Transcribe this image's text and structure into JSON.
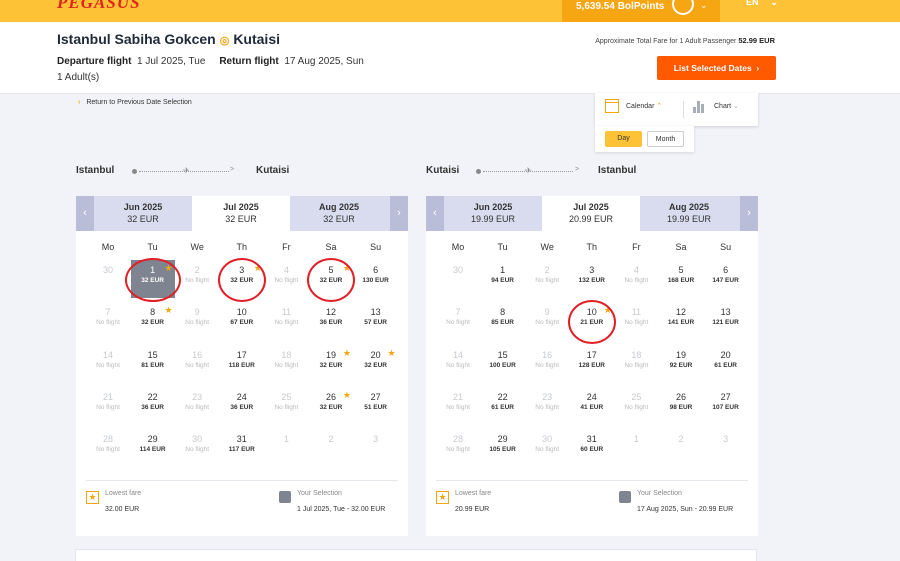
{
  "topbar": {
    "logo": "PEGASUS",
    "points": "5,639.54 BolPoints",
    "lang": "EN"
  },
  "header": {
    "origin": "Istanbul Sabiha Gokcen",
    "destination": "Kutaisi",
    "departure_label": "Departure flight",
    "departure_date": "1 Jul 2025, Tue",
    "return_label": "Return flight",
    "return_date": "17 Aug 2025, Sun",
    "passengers": "1 Adult(s)",
    "total_label": "Approximate Total Fare for 1 Adult Passenger",
    "total_value": "52.99 EUR",
    "list_button": "List Selected Dates"
  },
  "back_link": "Return to Previous Date Selection",
  "view": {
    "calendar": "Calendar",
    "chart": "Chart",
    "day": "Day",
    "month": "Month"
  },
  "weekdays": [
    "Mo",
    "Tu",
    "We",
    "Th",
    "Fr",
    "Sa",
    "Su"
  ],
  "outbound": {
    "from": "Istanbul",
    "to": "Kutaisi",
    "months": [
      {
        "name": "Jun 2025",
        "price": "32 EUR"
      },
      {
        "name": "Jul 2025",
        "price": "32 EUR",
        "active": true
      },
      {
        "name": "Aug 2025",
        "price": "32 EUR"
      }
    ],
    "days": [
      {
        "d": "30",
        "out": true
      },
      {
        "d": "1",
        "p": "32 EUR",
        "sel": true,
        "star": true,
        "circ": true
      },
      {
        "d": "2",
        "p": "No flight",
        "nf": true
      },
      {
        "d": "3",
        "p": "32 EUR",
        "star": true,
        "circ": true
      },
      {
        "d": "4",
        "p": "No flight",
        "nf": true
      },
      {
        "d": "5",
        "p": "32 EUR",
        "star": true,
        "circ": true
      },
      {
        "d": "6",
        "p": "130 EUR"
      },
      {
        "d": "7",
        "p": "No flight",
        "nf": true
      },
      {
        "d": "8",
        "p": "32 EUR",
        "star": true
      },
      {
        "d": "9",
        "p": "No flight",
        "nf": true
      },
      {
        "d": "10",
        "p": "67 EUR"
      },
      {
        "d": "11",
        "p": "No flight",
        "nf": true
      },
      {
        "d": "12",
        "p": "36 EUR"
      },
      {
        "d": "13",
        "p": "57 EUR"
      },
      {
        "d": "14",
        "p": "No flight",
        "nf": true
      },
      {
        "d": "15",
        "p": "81 EUR"
      },
      {
        "d": "16",
        "p": "No flight",
        "nf": true
      },
      {
        "d": "17",
        "p": "118 EUR"
      },
      {
        "d": "18",
        "p": "No flight",
        "nf": true
      },
      {
        "d": "19",
        "p": "32 EUR",
        "star": true
      },
      {
        "d": "20",
        "p": "32 EUR",
        "star": true
      },
      {
        "d": "21",
        "p": "No flight",
        "nf": true
      },
      {
        "d": "22",
        "p": "36 EUR"
      },
      {
        "d": "23",
        "p": "No flight",
        "nf": true
      },
      {
        "d": "24",
        "p": "36 EUR"
      },
      {
        "d": "25",
        "p": "No flight",
        "nf": true
      },
      {
        "d": "26",
        "p": "32 EUR",
        "star": true
      },
      {
        "d": "27",
        "p": "51 EUR"
      },
      {
        "d": "28",
        "p": "No flight",
        "nf": true
      },
      {
        "d": "29",
        "p": "114 EUR"
      },
      {
        "d": "30",
        "p": "No flight",
        "nf": true
      },
      {
        "d": "31",
        "p": "117 EUR"
      },
      {
        "d": "1",
        "out": true
      },
      {
        "d": "2",
        "out": true
      },
      {
        "d": "3",
        "out": true
      }
    ],
    "lowest_label": "Lowest fare",
    "lowest_value": "32.00 EUR",
    "selection_label": "Your Selection",
    "selection_value": "1 Jul 2025, Tue - 32.00 EUR"
  },
  "inbound": {
    "from": "Kutaisi",
    "to": "Istanbul",
    "months": [
      {
        "name": "Jun 2025",
        "price": "19.99 EUR"
      },
      {
        "name": "Jul 2025",
        "price": "20.99 EUR",
        "active": true
      },
      {
        "name": "Aug 2025",
        "price": "19.99 EUR"
      }
    ],
    "days": [
      {
        "d": "30",
        "out": true
      },
      {
        "d": "1",
        "p": "94 EUR"
      },
      {
        "d": "2",
        "p": "No flight",
        "nf": true
      },
      {
        "d": "3",
        "p": "132 EUR"
      },
      {
        "d": "4",
        "p": "No flight",
        "nf": true
      },
      {
        "d": "5",
        "p": "168 EUR"
      },
      {
        "d": "6",
        "p": "147 EUR"
      },
      {
        "d": "7",
        "p": "No flight",
        "nf": true
      },
      {
        "d": "8",
        "p": "85 EUR"
      },
      {
        "d": "9",
        "p": "No flight",
        "nf": true
      },
      {
        "d": "10",
        "p": "21 EUR",
        "star": true,
        "circ": true
      },
      {
        "d": "11",
        "p": "No flight",
        "nf": true
      },
      {
        "d": "12",
        "p": "141 EUR"
      },
      {
        "d": "13",
        "p": "121 EUR"
      },
      {
        "d": "14",
        "p": "No flight",
        "nf": true
      },
      {
        "d": "15",
        "p": "100 EUR"
      },
      {
        "d": "16",
        "p": "No flight",
        "nf": true
      },
      {
        "d": "17",
        "p": "128 EUR"
      },
      {
        "d": "18",
        "p": "No flight",
        "nf": true
      },
      {
        "d": "19",
        "p": "92 EUR"
      },
      {
        "d": "20",
        "p": "61 EUR"
      },
      {
        "d": "21",
        "p": "No flight",
        "nf": true
      },
      {
        "d": "22",
        "p": "61 EUR"
      },
      {
        "d": "23",
        "p": "No flight",
        "nf": true
      },
      {
        "d": "24",
        "p": "41 EUR"
      },
      {
        "d": "25",
        "p": "No flight",
        "nf": true
      },
      {
        "d": "26",
        "p": "98 EUR"
      },
      {
        "d": "27",
        "p": "107 EUR"
      },
      {
        "d": "28",
        "p": "No flight",
        "nf": true
      },
      {
        "d": "29",
        "p": "105 EUR"
      },
      {
        "d": "30",
        "p": "No flight",
        "nf": true
      },
      {
        "d": "31",
        "p": "60 EUR"
      },
      {
        "d": "1",
        "out": true
      },
      {
        "d": "2",
        "out": true
      },
      {
        "d": "3",
        "out": true
      }
    ],
    "lowest_label": "Lowest fare",
    "lowest_value": "20.99 EUR",
    "selection_label": "Your Selection",
    "selection_value": "17 Aug 2025, Sun - 20.99 EUR"
  },
  "colors": {
    "brand_yellow": "#fdc236",
    "cta_orange": "#ff5a00",
    "selection_gray": "#7f8590",
    "annotation_red": "#e01f26"
  }
}
